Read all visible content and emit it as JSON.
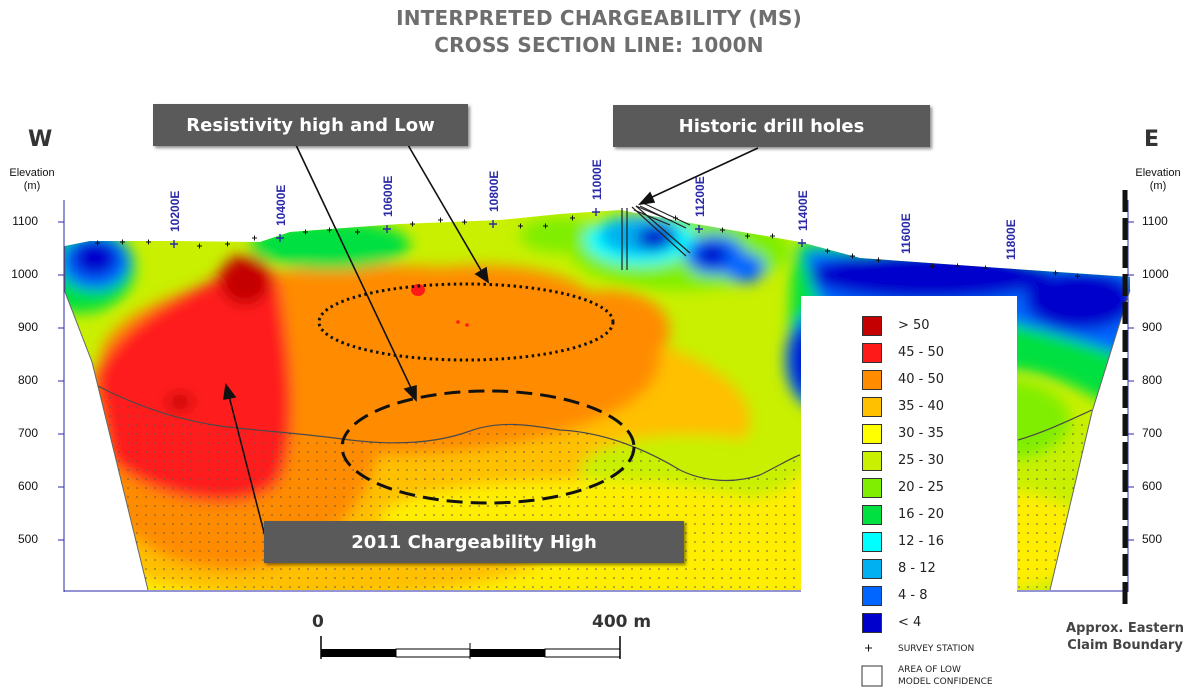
{
  "title": {
    "line1": "INTERPRETED CHARGEABILITY (MS)",
    "line2": "CROSS SECTION LINE: 1000N"
  },
  "directions": {
    "west": "W",
    "east": "E"
  },
  "elevation_axis": {
    "label": "Elevation",
    "unit": "(m)",
    "ticks": [
      "1100",
      "1000",
      "900",
      "800",
      "700",
      "600",
      "500"
    ]
  },
  "stations": [
    "10200E",
    "10400E",
    "10600E",
    "10800E",
    "11000E",
    "11200E",
    "11400E",
    "11600E",
    "11800E"
  ],
  "callouts": {
    "resistivity": "Resistivity high and Low",
    "drill": "Historic drill holes",
    "chargeability": "2011 Chargeability High"
  },
  "legend": {
    "items": [
      {
        "label": "> 50",
        "color": "#c40000"
      },
      {
        "label": "45 - 50",
        "color": "#ff1a1a"
      },
      {
        "label": "40 - 50",
        "color": "#ff8c00"
      },
      {
        "label": "35 - 40",
        "color": "#ffc000"
      },
      {
        "label": "30 - 35",
        "color": "#ffff00"
      },
      {
        "label": "25 - 30",
        "color": "#c8f000"
      },
      {
        "label": "20 - 25",
        "color": "#80ee00"
      },
      {
        "label": "16 - 20",
        "color": "#00e040"
      },
      {
        "label": "12 - 16",
        "color": "#00ffff"
      },
      {
        "label": "8 - 12",
        "color": "#00b0f0"
      },
      {
        "label": "4 - 8",
        "color": "#0066ff"
      },
      {
        "label": "< 4",
        "color": "#0000cc"
      }
    ],
    "survey_station": "SURVEY STATION",
    "low_confidence_line1": "AREA OF LOW",
    "low_confidence_line2": "MODEL CONFIDENCE"
  },
  "scale_bar": {
    "start": "0",
    "end": "400 m"
  },
  "claim_boundary": {
    "line1": "Approx. Eastern",
    "line2": "Claim Boundary"
  }
}
